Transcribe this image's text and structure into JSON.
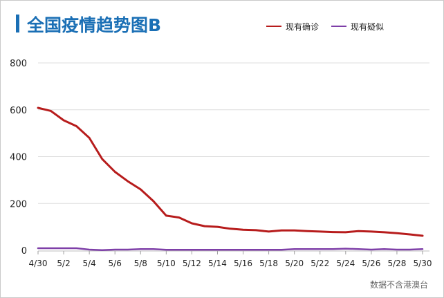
{
  "title": "全国疫情趋势图B",
  "source": "数据不含港澳台",
  "colors": {
    "title": "#1a6fb5",
    "confirmed": "#b71c1c",
    "suspected": "#7e3fa8",
    "grid": "#dedede"
  },
  "chart_data": {
    "type": "line",
    "title": "全国疫情趋势图B",
    "legend_position": "top-right",
    "grid": true,
    "ylim": [
      0,
      800
    ],
    "yticks": [
      0,
      200,
      400,
      600,
      800
    ],
    "x": [
      "4/30",
      "5/1",
      "5/2",
      "5/3",
      "5/4",
      "5/5",
      "5/6",
      "5/7",
      "5/8",
      "5/9",
      "5/10",
      "5/11",
      "5/12",
      "5/13",
      "5/14",
      "5/15",
      "5/16",
      "5/17",
      "5/18",
      "5/19",
      "5/20",
      "5/21",
      "5/22",
      "5/23",
      "5/24",
      "5/25",
      "5/26",
      "5/27",
      "5/28",
      "5/29",
      "5/30"
    ],
    "xtick_labels": [
      "4/30",
      "5/2",
      "5/4",
      "5/6",
      "5/8",
      "5/10",
      "5/12",
      "5/14",
      "5/16",
      "5/18",
      "5/20",
      "5/22",
      "5/24",
      "5/26",
      "5/28",
      "5/30"
    ],
    "series": [
      {
        "name": "现有确诊",
        "color": "#b71c1c",
        "values": [
          608,
          595,
          555,
          530,
          480,
          390,
          335,
          295,
          260,
          210,
          148,
          140,
          115,
          103,
          100,
          92,
          88,
          86,
          80,
          85,
          85,
          82,
          80,
          78,
          77,
          82,
          80,
          77,
          73,
          68,
          62
        ]
      },
      {
        "name": "现有疑似",
        "color": "#7e3fa8",
        "values": [
          9,
          9,
          9,
          9,
          3,
          1,
          3,
          3,
          5,
          5,
          2,
          2,
          2,
          2,
          2,
          2,
          2,
          2,
          2,
          2,
          5,
          5,
          5,
          5,
          7,
          5,
          3,
          5,
          3,
          3,
          5
        ]
      }
    ]
  }
}
